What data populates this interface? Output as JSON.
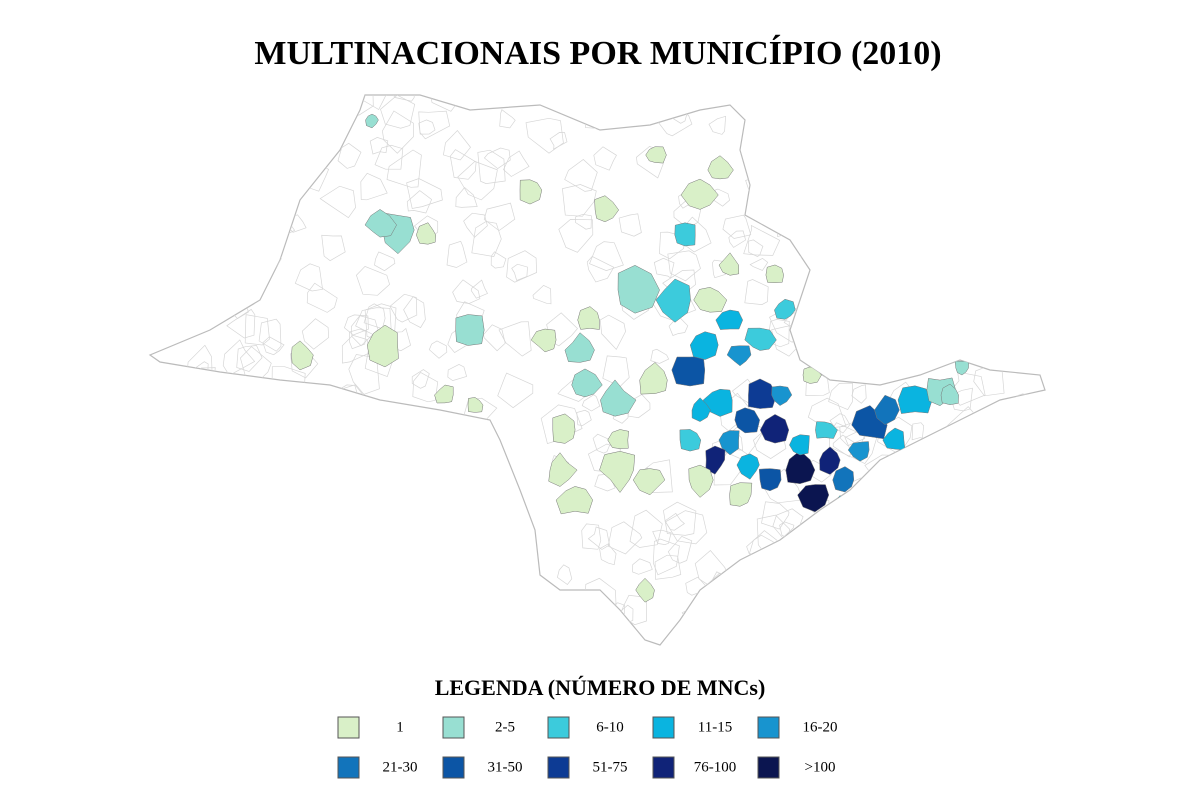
{
  "header": {
    "title": "MULTINACIONAIS POR MUNICÍPIO (2010)"
  },
  "legend": {
    "title": "LEGENDA (NÚMERO DE MNCs)",
    "items": [
      {
        "label": "1",
        "color": "#d9f0c8"
      },
      {
        "label": "2-5",
        "color": "#98dfd2"
      },
      {
        "label": "6-10",
        "color": "#3ccbdc"
      },
      {
        "label": "11-15",
        "color": "#0ab4e0"
      },
      {
        "label": "16-20",
        "color": "#1894cf"
      },
      {
        "label": "21-30",
        "color": "#1274bb"
      },
      {
        "label": "31-50",
        "color": "#0c55a5"
      },
      {
        "label": "51-75",
        "color": "#0d3b94"
      },
      {
        "label": "76-100",
        "color": "#102378"
      },
      {
        "label": ">100",
        "color": "#0b1550"
      }
    ]
  }
}
